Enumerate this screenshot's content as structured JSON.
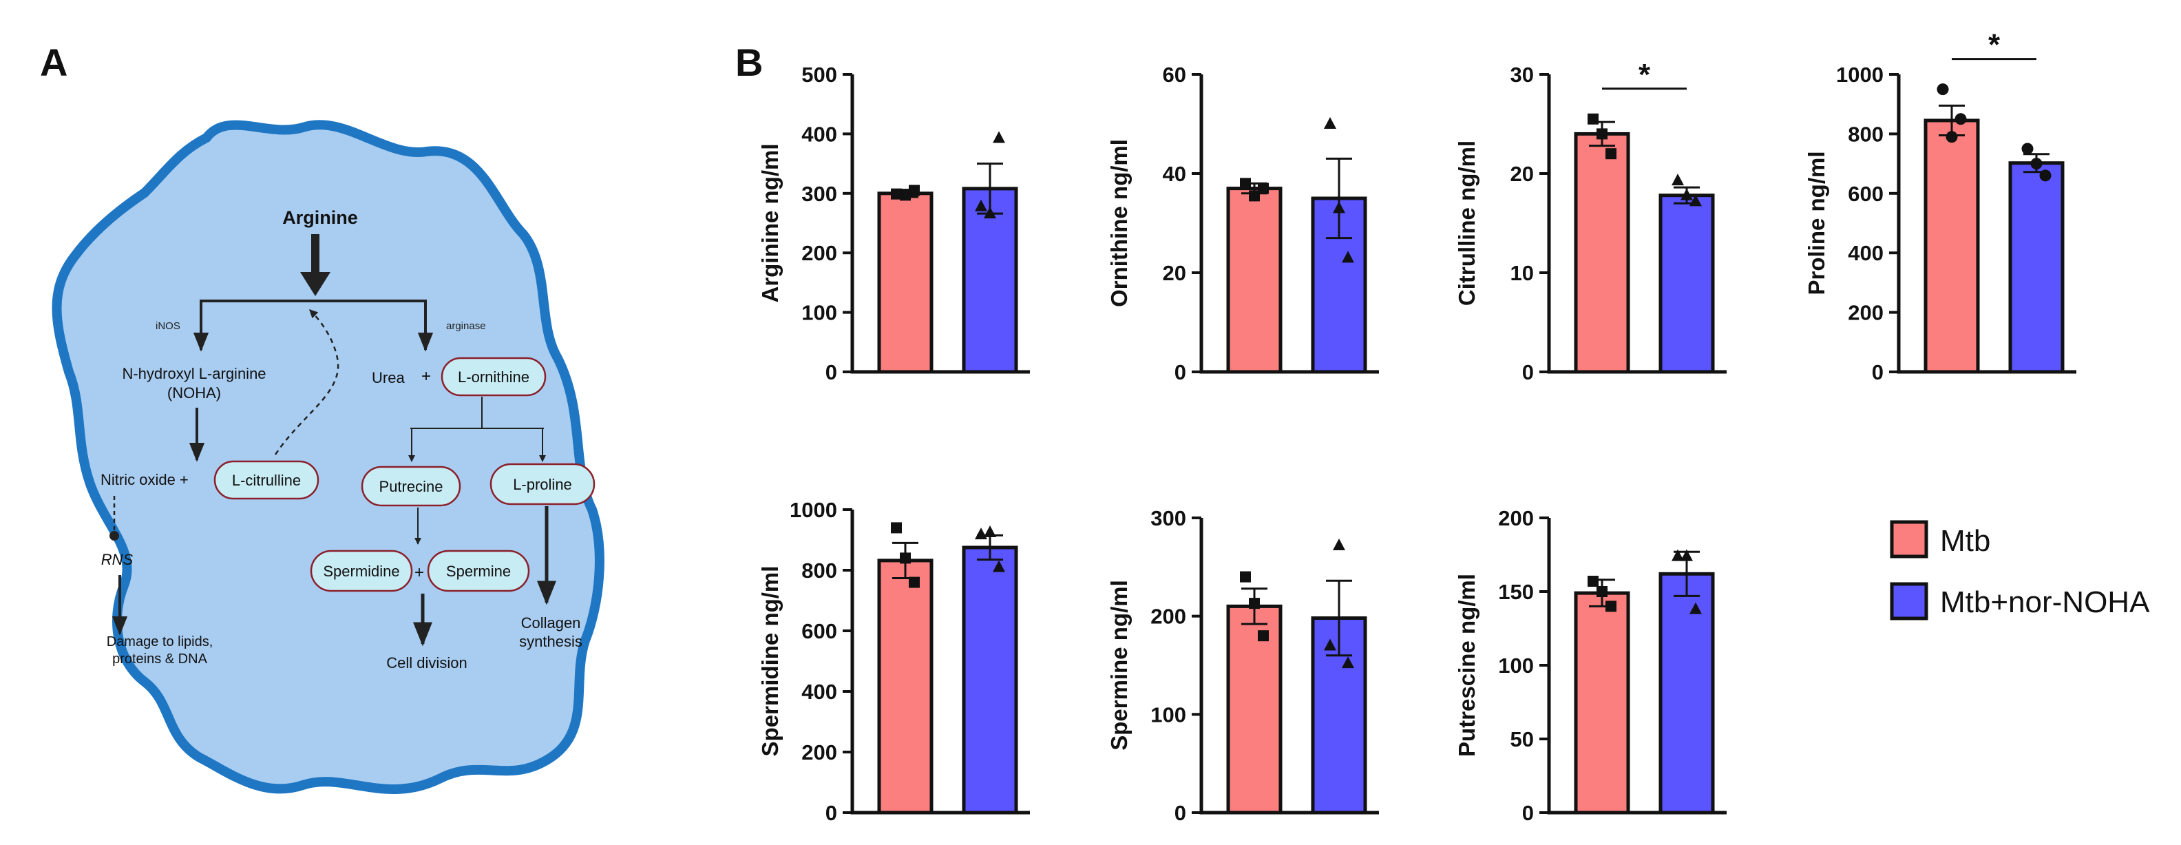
{
  "panel_a": {
    "label": "A",
    "colors": {
      "cell_fill": "#a9cdf1",
      "cell_stroke": "#1f77c4",
      "node_fill": "#c8ecf4",
      "node_stroke": "#8b1f2a"
    },
    "arginine": "Arginine",
    "inos": "iNOS",
    "arginase": "arginase",
    "noha_line1": "N-hydroxyl L-arginine",
    "noha_line2": "(NOHA)",
    "nitric_oxide": "Nitric oxide +",
    "l_citrulline": "L-citrulline",
    "rns": "RNS",
    "damage_line1": "Damage to lipids,",
    "damage_line2": "proteins & DNA",
    "urea": "Urea",
    "plus": "+",
    "l_ornithine": "L-ornithine",
    "putrecine": "Putrecine",
    "l_proline": "L-proline",
    "spermidine": "Spermidine",
    "spermine": "Spermine",
    "cell_division": "Cell division",
    "collagen_line1": "Collagen",
    "collagen_line2": "synthesis"
  },
  "panel_b": {
    "label": "B"
  },
  "legend": {
    "items": [
      {
        "label": "Mtb",
        "color": "#fa7f7e"
      },
      {
        "label": "Mtb+nor-NOHA",
        "color": "#5a55ff"
      }
    ]
  },
  "chart_data": [
    {
      "type": "bar",
      "ylabel": "Arginine ng/ml",
      "ylim": [
        0,
        500
      ],
      "yticks": [
        0,
        100,
        200,
        300,
        400,
        500
      ],
      "categories": [
        "Mtb",
        "Mtb+nor-NOHA"
      ],
      "values": [
        300,
        308
      ],
      "sem": [
        6,
        42
      ],
      "marker": [
        "square",
        "triangle"
      ],
      "points": [
        [
          299,
          297,
          305
        ],
        [
          278,
          266,
          393
        ]
      ],
      "significance": ""
    },
    {
      "type": "bar",
      "ylabel": "Ornithine ng/ml",
      "ylim": [
        0,
        60
      ],
      "yticks": [
        0,
        20,
        40,
        60
      ],
      "categories": [
        "Mtb",
        "Mtb+nor-NOHA"
      ],
      "values": [
        37,
        35
      ],
      "sem": [
        1,
        8
      ],
      "marker": [
        "square",
        "triangle"
      ],
      "points": [
        [
          38,
          35.5,
          37
        ],
        [
          50,
          33,
          23
        ]
      ],
      "significance": ""
    },
    {
      "type": "bar",
      "ylabel": "Citrulline ng/ml",
      "ylim": [
        0,
        30
      ],
      "yticks": [
        0,
        10,
        20,
        30
      ],
      "categories": [
        "Mtb",
        "Mtb+nor-NOHA"
      ],
      "values": [
        24,
        17.8
      ],
      "sem": [
        1.2,
        0.8
      ],
      "marker": [
        "square",
        "triangle"
      ],
      "points": [
        [
          25.5,
          24,
          22
        ],
        [
          19.3,
          17.8,
          17.2
        ]
      ],
      "significance": "*"
    },
    {
      "type": "bar",
      "ylabel": "Proline ng/ml",
      "ylim": [
        0,
        1000
      ],
      "yticks": [
        0,
        200,
        400,
        600,
        800,
        1000
      ],
      "categories": [
        "Mtb",
        "Mtb+nor-NOHA"
      ],
      "values": [
        845,
        702
      ],
      "sem": [
        50,
        30
      ],
      "marker": [
        "circle",
        "circle"
      ],
      "points": [
        [
          950,
          790,
          850
        ],
        [
          750,
          700,
          660
        ]
      ],
      "significance": "*"
    },
    {
      "type": "bar",
      "ylabel": "Spermidine ng/ml",
      "ylim": [
        0,
        1000
      ],
      "yticks": [
        0,
        200,
        400,
        600,
        800,
        1000
      ],
      "categories": [
        "Mtb",
        "Mtb+nor-NOHA"
      ],
      "values": [
        832,
        875
      ],
      "sem": [
        58,
        40
      ],
      "marker": [
        "square",
        "triangle"
      ],
      "points": [
        [
          940,
          840,
          760
        ],
        [
          918,
          925,
          810
        ]
      ],
      "significance": ""
    },
    {
      "type": "bar",
      "ylabel": "Spermine ng/ml",
      "ylim": [
        0,
        300
      ],
      "yticks": [
        0,
        100,
        200,
        300
      ],
      "categories": [
        "Mtb",
        "Mtb+nor-NOHA"
      ],
      "values": [
        210,
        198
      ],
      "sem": [
        18,
        38
      ],
      "marker": [
        "square",
        "triangle"
      ],
      "points": [
        [
          240,
          213,
          180
        ],
        [
          170,
          272,
          152
        ]
      ],
      "significance": ""
    },
    {
      "type": "bar",
      "ylabel": "Putrescine ng/ml",
      "ylim": [
        0,
        200
      ],
      "yticks": [
        0,
        50,
        100,
        150,
        200
      ],
      "categories": [
        "Mtb",
        "Mtb+nor-NOHA"
      ],
      "values": [
        149,
        162
      ],
      "sem": [
        9,
        15
      ],
      "marker": [
        "square",
        "triangle"
      ],
      "points": [
        [
          157,
          150,
          140
        ],
        [
          174,
          174,
          138
        ]
      ],
      "significance": ""
    }
  ]
}
